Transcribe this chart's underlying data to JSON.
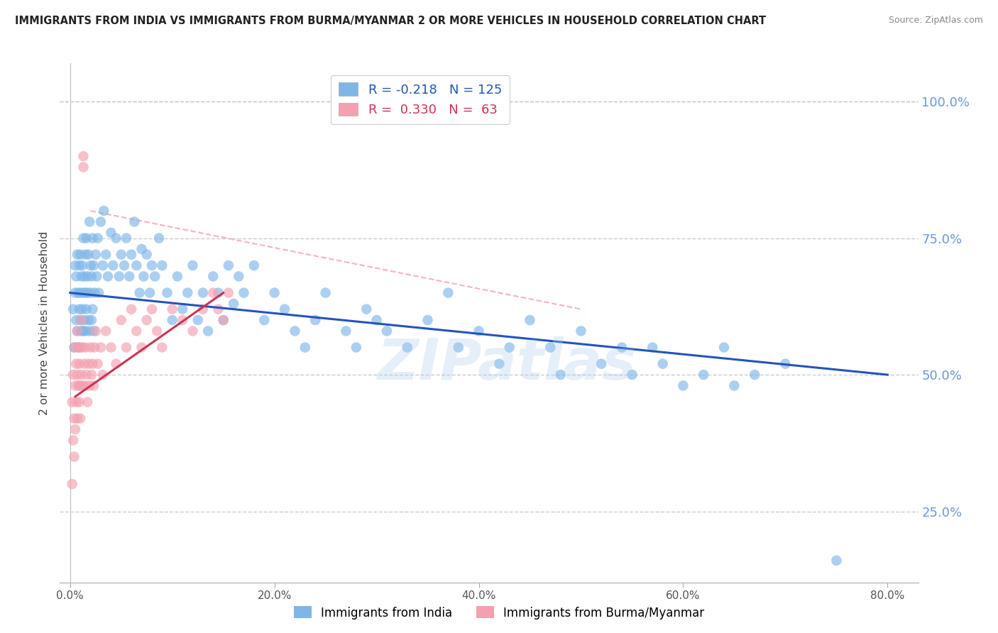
{
  "title": "IMMIGRANTS FROM INDIA VS IMMIGRANTS FROM BURMA/MYANMAR 2 OR MORE VEHICLES IN HOUSEHOLD CORRELATION CHART",
  "source": "Source: ZipAtlas.com",
  "ylabel": "2 or more Vehicles in Household",
  "x_tick_labels": [
    "0.0%",
    "20.0%",
    "40.0%",
    "60.0%",
    "80.0%"
  ],
  "x_tick_values": [
    0.0,
    20.0,
    40.0,
    60.0,
    80.0
  ],
  "y_tick_labels": [
    "25.0%",
    "50.0%",
    "75.0%",
    "100.0%"
  ],
  "y_tick_values": [
    25.0,
    50.0,
    75.0,
    100.0
  ],
  "xlim": [
    -1.0,
    83.0
  ],
  "ylim": [
    12.0,
    107.0
  ],
  "india_color": "#7EB6E8",
  "burma_color": "#F4A0B0",
  "india_line_color": "#2255BB",
  "burma_line_color": "#CC3355",
  "india_R": -0.218,
  "india_N": 125,
  "burma_R": 0.33,
  "burma_N": 63,
  "legend_label_india": "Immigrants from India",
  "legend_label_burma": "Immigrants from Burma/Myanmar",
  "watermark": "ZIPatlas",
  "india_line_x0": 0.0,
  "india_line_y0": 65.0,
  "india_line_x1": 80.0,
  "india_line_y1": 50.0,
  "burma_line_x0": 0.5,
  "burma_line_y0": 46.0,
  "burma_line_x1": 15.0,
  "burma_line_y1": 65.0,
  "dash_line_x0": 2.0,
  "dash_line_y0": 80.0,
  "dash_line_x1": 50.0,
  "dash_line_y1": 62.0,
  "india_scatter_x": [
    0.3,
    0.4,
    0.5,
    0.5,
    0.6,
    0.6,
    0.7,
    0.7,
    0.8,
    0.8,
    0.9,
    0.9,
    1.0,
    1.0,
    1.0,
    1.1,
    1.1,
    1.2,
    1.2,
    1.3,
    1.3,
    1.3,
    1.4,
    1.4,
    1.5,
    1.5,
    1.5,
    1.6,
    1.6,
    1.7,
    1.7,
    1.8,
    1.8,
    1.9,
    1.9,
    2.0,
    2.0,
    2.1,
    2.1,
    2.2,
    2.2,
    2.3,
    2.3,
    2.4,
    2.5,
    2.6,
    2.7,
    2.8,
    3.0,
    3.2,
    3.3,
    3.5,
    3.7,
    4.0,
    4.2,
    4.5,
    4.8,
    5.0,
    5.3,
    5.5,
    5.8,
    6.0,
    6.3,
    6.5,
    6.8,
    7.0,
    7.2,
    7.5,
    7.8,
    8.0,
    8.3,
    8.7,
    9.0,
    9.5,
    10.0,
    10.5,
    11.0,
    11.5,
    12.0,
    12.5,
    13.0,
    13.5,
    14.0,
    14.5,
    15.0,
    15.5,
    16.0,
    16.5,
    17.0,
    18.0,
    19.0,
    20.0,
    21.0,
    22.0,
    23.0,
    24.0,
    25.0,
    27.0,
    28.0,
    29.0,
    30.0,
    31.0,
    33.0,
    35.0,
    37.0,
    38.0,
    40.0,
    42.0,
    43.0,
    45.0,
    47.0,
    48.0,
    50.0,
    52.0,
    54.0,
    55.0,
    57.0,
    58.0,
    60.0,
    62.0,
    64.0,
    65.0,
    67.0,
    70.0,
    75.0
  ],
  "india_scatter_y": [
    62,
    55,
    65,
    70,
    60,
    68,
    58,
    72,
    55,
    65,
    62,
    70,
    60,
    65,
    72,
    58,
    68,
    62,
    70,
    65,
    58,
    75,
    60,
    68,
    65,
    72,
    58,
    75,
    62,
    68,
    65,
    60,
    72,
    58,
    78,
    65,
    70,
    60,
    68,
    75,
    62,
    70,
    58,
    65,
    72,
    68,
    75,
    65,
    78,
    70,
    80,
    72,
    68,
    76,
    70,
    75,
    68,
    72,
    70,
    75,
    68,
    72,
    78,
    70,
    65,
    73,
    68,
    72,
    65,
    70,
    68,
    75,
    70,
    65,
    60,
    68,
    62,
    65,
    70,
    60,
    65,
    58,
    68,
    65,
    60,
    70,
    63,
    68,
    65,
    70,
    60,
    65,
    62,
    58,
    55,
    60,
    65,
    58,
    55,
    62,
    60,
    58,
    55,
    60,
    65,
    55,
    58,
    52,
    55,
    60,
    55,
    50,
    58,
    52,
    55,
    50,
    55,
    52,
    48,
    50,
    55,
    48,
    50,
    52,
    16
  ],
  "burma_scatter_x": [
    0.2,
    0.2,
    0.3,
    0.3,
    0.4,
    0.4,
    0.5,
    0.5,
    0.5,
    0.6,
    0.6,
    0.7,
    0.7,
    0.7,
    0.8,
    0.8,
    0.9,
    0.9,
    1.0,
    1.0,
    1.0,
    1.1,
    1.1,
    1.2,
    1.2,
    1.3,
    1.3,
    1.4,
    1.5,
    1.5,
    1.6,
    1.7,
    1.8,
    1.9,
    2.0,
    2.1,
    2.2,
    2.3,
    2.4,
    2.5,
    2.7,
    3.0,
    3.2,
    3.5,
    4.0,
    4.5,
    5.0,
    5.5,
    6.0,
    6.5,
    7.0,
    7.5,
    8.0,
    8.5,
    9.0,
    10.0,
    11.0,
    12.0,
    13.0,
    14.0,
    14.5,
    15.0,
    15.5
  ],
  "burma_scatter_y": [
    45,
    30,
    38,
    50,
    42,
    35,
    48,
    55,
    40,
    45,
    52,
    50,
    42,
    58,
    48,
    55,
    45,
    52,
    48,
    55,
    42,
    50,
    60,
    48,
    55,
    88,
    90,
    52,
    48,
    55,
    50,
    45,
    52,
    48,
    55,
    50,
    52,
    48,
    55,
    58,
    52,
    55,
    50,
    58,
    55,
    52,
    60,
    55,
    62,
    58,
    55,
    60,
    62,
    58,
    55,
    62,
    60,
    58,
    62,
    65,
    62,
    60,
    65
  ]
}
